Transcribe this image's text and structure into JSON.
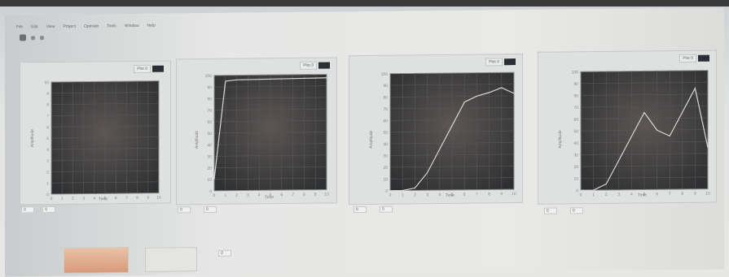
{
  "menu": [
    "File",
    "Edit",
    "View",
    "Project",
    "Operate",
    "Tools",
    "Window",
    "Help"
  ],
  "panels": [
    {
      "title": "",
      "plot_label": "Plot 0",
      "xlabel": "Time",
      "ylabel": "Amplitude",
      "readouts": [
        {
          "label": "",
          "value": "0"
        },
        {
          "label": "",
          "value": "0"
        }
      ]
    },
    {
      "title": "",
      "plot_label": "Plot 0",
      "xlabel": "Time",
      "ylabel": "Amplitude",
      "readouts": [
        {
          "label": "",
          "value": "0"
        },
        {
          "label": "",
          "value": "0"
        }
      ]
    },
    {
      "title": "",
      "plot_label": "Plot 0",
      "xlabel": "Time",
      "ylabel": "Amplitude",
      "readouts": [
        {
          "label": "",
          "value": "0"
        },
        {
          "label": "",
          "value": "0"
        }
      ]
    },
    {
      "title": "",
      "plot_label": "Plot 0",
      "xlabel": "Time",
      "ylabel": "Amplitude",
      "readouts": [
        {
          "label": "",
          "value": "0"
        },
        {
          "label": "",
          "value": "0"
        }
      ]
    }
  ],
  "buttons": {
    "start": "",
    "calibrate": ""
  },
  "footer_readout": {
    "label": "",
    "value": "0"
  },
  "chart_data": [
    {
      "type": "line",
      "title": "",
      "xlabel": "Time",
      "ylabel": "Amplitude",
      "xlim": [
        0,
        10
      ],
      "ylim": [
        0,
        10
      ],
      "x": [],
      "series": []
    },
    {
      "type": "line",
      "title": "",
      "xlabel": "Time",
      "ylabel": "Amplitude",
      "xlim": [
        0,
        10
      ],
      "ylim": [
        0,
        100
      ],
      "x": [
        0,
        1,
        2,
        10
      ],
      "series": [
        {
          "name": "",
          "values": [
            10,
            95,
            96,
            97
          ]
        }
      ]
    },
    {
      "type": "line",
      "title": "",
      "xlabel": "Time",
      "ylabel": "Amplitude",
      "xlim": [
        0,
        10
      ],
      "ylim": [
        0,
        100
      ],
      "x": [
        0,
        1,
        2,
        3,
        4,
        5,
        6,
        7,
        8,
        9,
        10
      ],
      "series": [
        {
          "name": "",
          "values": [
            0,
            0,
            2,
            15,
            35,
            55,
            75,
            80,
            83,
            87,
            82
          ]
        }
      ]
    },
    {
      "type": "line",
      "title": "",
      "xlabel": "Time",
      "ylabel": "Amplitude",
      "xlim": [
        0,
        10
      ],
      "ylim": [
        0,
        100
      ],
      "x": [
        0,
        1,
        2,
        3,
        4,
        5,
        6,
        7,
        8,
        9,
        10
      ],
      "series": [
        {
          "name": "",
          "values": [
            0,
            0,
            5,
            25,
            45,
            65,
            50,
            45,
            65,
            85,
            35
          ]
        }
      ]
    }
  ]
}
